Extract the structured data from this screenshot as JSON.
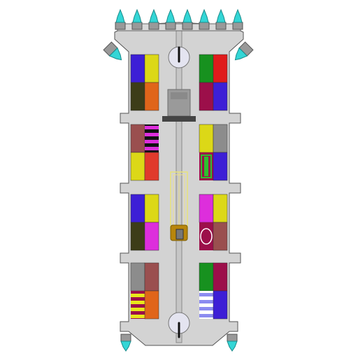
{
  "palette": {
    "hull": "#d3d3d3",
    "outline": "#555555",
    "thruster": "#999999",
    "flame": "#33d6d6",
    "flame_core": "#ffffff",
    "dial": "#e4e4f0",
    "elevator_track": "#bbbbbb",
    "console": "#9a9a9a",
    "sofa": "#b8860b"
  },
  "rooms": {
    "left": [
      [
        "#3d1fd6",
        "#dcd817",
        "#3d3d18",
        "#e0651a"
      ],
      [
        "#9a4f4f",
        "stripes-magenta",
        "#dcd817",
        "#e03a2c"
      ],
      [
        "#3d1fd6",
        "#dcd817",
        "#3d3d18",
        "#dd2edc"
      ],
      [
        "#8c8c8c",
        "#9a4f4f",
        "stripes-yellow",
        "#e0651a"
      ]
    ],
    "right": [
      [
        "#17911f",
        "#e01b1b",
        "#9c0f4a",
        "#3d1fd6"
      ],
      [
        "#dcd817",
        "#8c8c8c",
        "bed-green",
        "#3d1fd6"
      ],
      [
        "#dd2edc",
        "#dcd817",
        "rug-circle",
        "#9a4f4f"
      ],
      [
        "#17911f",
        "#9c0f4a",
        "stripes-blue",
        "#3d1fd6"
      ]
    ]
  },
  "icons": {
    "thrusters": "thruster-icon",
    "dial": "dial-icon",
    "console": "console-icon",
    "elevator": "elevator-icon"
  }
}
